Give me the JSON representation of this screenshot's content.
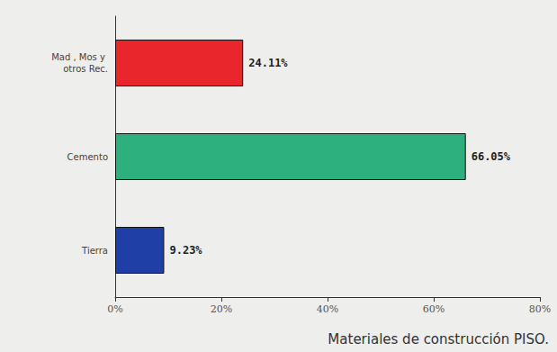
{
  "chart_data": {
    "type": "bar",
    "orientation": "horizontal",
    "title": "Materiales de construcción PISO.",
    "categories": [
      "Mad , Mos y otros Rec.",
      "Cemento",
      "Tierra"
    ],
    "values": [
      24.11,
      66.05,
      9.23
    ],
    "value_labels": [
      "24.11%",
      "66.05%",
      "9.23%"
    ],
    "colors": [
      "#e8262b",
      "#2eb07e",
      "#1f3fa6"
    ],
    "data_labels": true,
    "grid": false,
    "xlim": [
      0,
      80
    ],
    "xticks": [
      {
        "value": 0,
        "label": "0%"
      },
      {
        "value": 20,
        "label": "20%"
      },
      {
        "value": 40,
        "label": "40%"
      },
      {
        "value": 60,
        "label": "60%"
      },
      {
        "value": 80,
        "label": "80%"
      }
    ]
  }
}
